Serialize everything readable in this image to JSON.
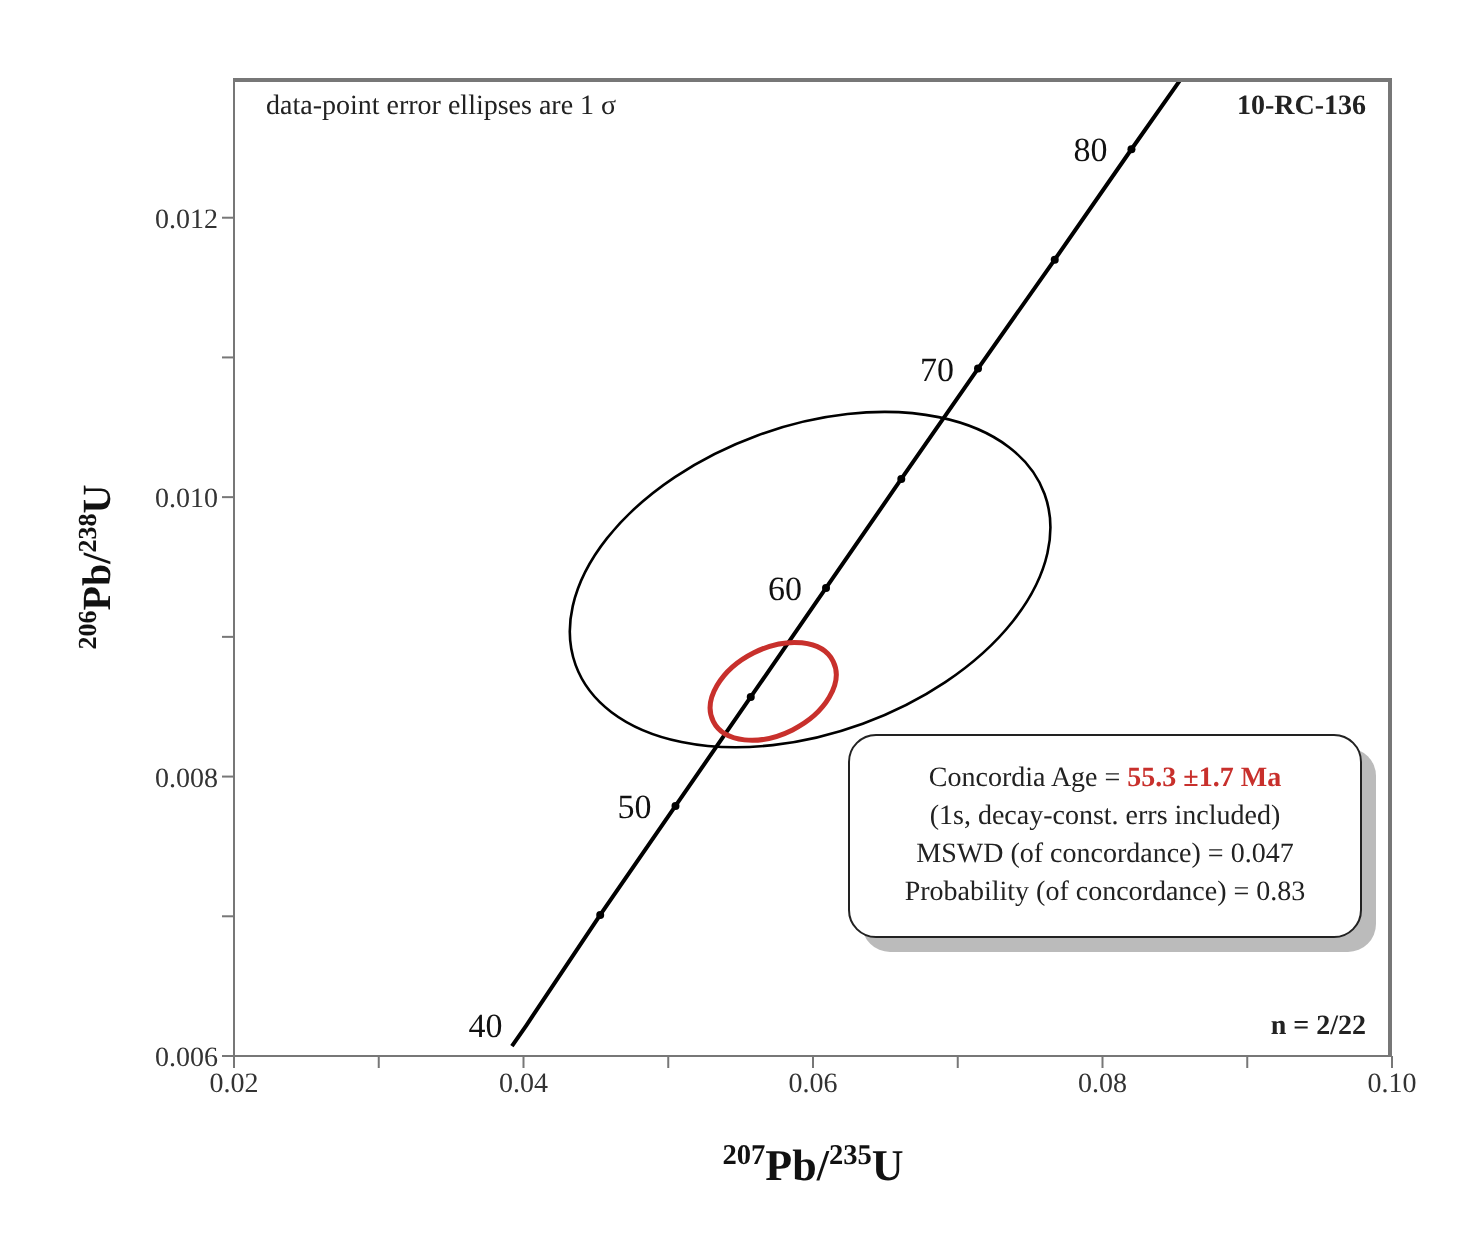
{
  "chart_data": {
    "type": "line",
    "xlabel": "$^{207}$Pb/$^{235}$U",
    "ylabel": "$^{206}$Pb/$^{238}$U",
    "xlim": [
      0.02,
      0.1
    ],
    "ylim": [
      0.006,
      0.013
    ],
    "xticks": [
      {
        "value": 0.02,
        "label": "0.02"
      },
      {
        "value": 0.03,
        "label": null
      },
      {
        "value": 0.04,
        "label": "0.04"
      },
      {
        "value": 0.05,
        "label": null
      },
      {
        "value": 0.06,
        "label": "0.06"
      },
      {
        "value": 0.07,
        "label": null
      },
      {
        "value": 0.08,
        "label": "0.08"
      },
      {
        "value": 0.09,
        "label": null
      },
      {
        "value": 0.1,
        "label": "0.10"
      }
    ],
    "yticks": [
      {
        "value": 0.006,
        "label": "0.006"
      },
      {
        "value": 0.007,
        "label": null
      },
      {
        "value": 0.008,
        "label": "0.008"
      },
      {
        "value": 0.009,
        "label": null
      },
      {
        "value": 0.01,
        "label": "0.010"
      },
      {
        "value": 0.011,
        "label": null
      },
      {
        "value": 0.012,
        "label": "0.012"
      }
    ],
    "grid": false,
    "series": [
      {
        "color": "#000000",
        "x": [
          0.0392,
          0.0402,
          0.0453,
          0.0505,
          0.0557,
          0.0609,
          0.0661,
          0.0714,
          0.0767,
          0.082,
          0.0854
        ],
        "values": [
          0.00607,
          0.00622,
          0.00701,
          0.00779,
          0.00857,
          0.00935,
          0.01013,
          0.01092,
          0.0117,
          0.01249,
          0.01299
        ]
      },
      {
        "type": "scatter",
        "marker": "circle",
        "color": "#000000",
        "x": [
          0.0453,
          0.0505,
          0.0557,
          0.0609,
          0.0661,
          0.0714,
          0.0767,
          0.082
        ],
        "values": [
          0.00701,
          0.00779,
          0.00857,
          0.00935,
          0.01013,
          0.01092,
          0.0117,
          0.01249
        ]
      }
    ],
    "annotations": [
      "data-point error ellipses are 1 σ",
      "10-RC-136",
      "n = 2/22",
      "Concordia Age = ",
      "55.3 ±1.7 Ma",
      "(1s, decay-const. errs included)",
      "MSWD (of concordance) = 0.047",
      "Probability (of concordance) = 0.83",
      {
        "text": "40",
        "x": 0.0402,
        "y": 0.00622
      },
      {
        "text": "50",
        "x": 0.0505,
        "y": 0.00779
      },
      {
        "text": "60",
        "x": 0.0609,
        "y": 0.00935
      },
      {
        "text": "70",
        "x": 0.0714,
        "y": 0.01092
      },
      {
        "text": "80",
        "x": 0.082,
        "y": 0.01249
      }
    ]
  }
}
